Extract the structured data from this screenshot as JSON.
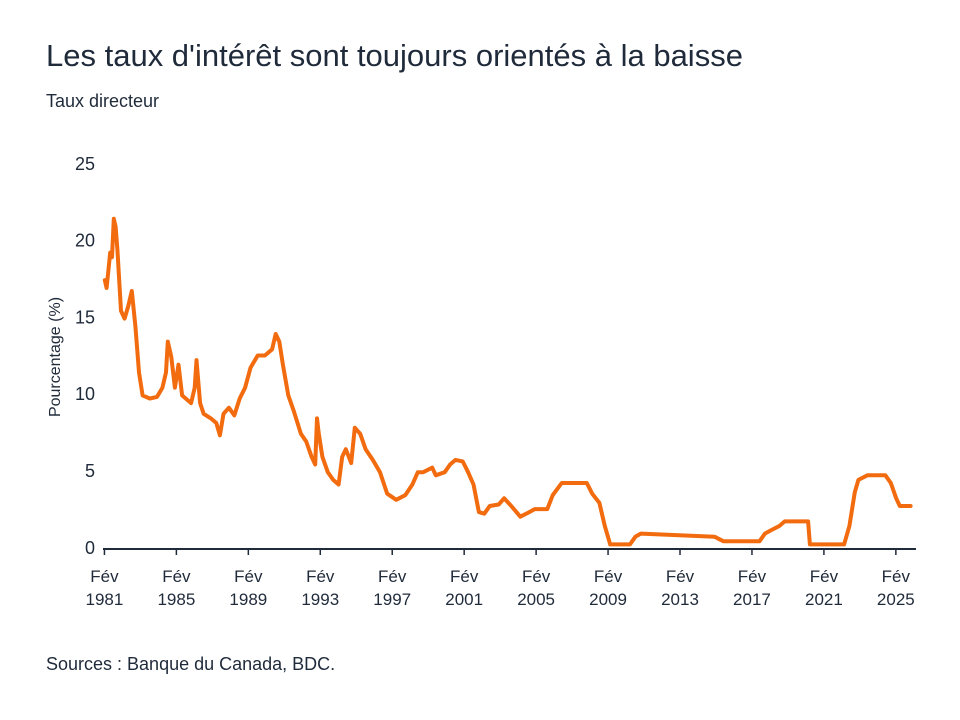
{
  "chart_data": {
    "type": "line",
    "title": "Les taux d'intérêt sont toujours orientés à la baisse",
    "subtitle": "Taux directeur",
    "y_label": "Pourcentage (%)",
    "source": "Sources : Banque du Canada, BDC.",
    "xlim": [
      1981,
      2026.2
    ],
    "xticks": [
      {
        "value": 1981.08,
        "label": "Fév 1981"
      },
      {
        "value": 1985.08,
        "label": "Fév 1985"
      },
      {
        "value": 1989.08,
        "label": "Fév 1989"
      },
      {
        "value": 1993.08,
        "label": "Fév 1993"
      },
      {
        "value": 1997.08,
        "label": "Fév 1997"
      },
      {
        "value": 2001.08,
        "label": "Fév 2001"
      },
      {
        "value": 2005.08,
        "label": "Fév 2005"
      },
      {
        "value": 2009.08,
        "label": "Fév 2009"
      },
      {
        "value": 2013.08,
        "label": "Fév 2013"
      },
      {
        "value": 2017.08,
        "label": "Fév 2017"
      },
      {
        "value": 2021.08,
        "label": "Fév 2021"
      },
      {
        "value": 2025.08,
        "label": "Fév 2025"
      }
    ],
    "ylim": [
      0,
      25
    ],
    "yticks": [
      0,
      5,
      10,
      15,
      20,
      25
    ],
    "grid": false,
    "x": [
      1981.1,
      1981.2,
      1981.4,
      1981.5,
      1981.6,
      1981.7,
      1981.8,
      1981.9,
      1982.0,
      1982.2,
      1982.4,
      1982.6,
      1982.8,
      1983.0,
      1983.2,
      1983.6,
      1984.0,
      1984.3,
      1984.5,
      1984.6,
      1984.8,
      1985.0,
      1985.2,
      1985.4,
      1985.6,
      1985.9,
      1986.1,
      1986.2,
      1986.4,
      1986.6,
      1987.0,
      1987.3,
      1987.5,
      1987.7,
      1988.0,
      1988.3,
      1988.6,
      1988.9,
      1989.2,
      1989.6,
      1990.0,
      1990.4,
      1990.6,
      1990.8,
      1991.0,
      1991.3,
      1991.6,
      1992.0,
      1992.3,
      1992.6,
      1992.8,
      1992.9,
      1993.0,
      1993.2,
      1993.5,
      1993.8,
      1994.1,
      1994.3,
      1994.5,
      1994.8,
      1995.0,
      1995.3,
      1995.6,
      1996.0,
      1996.4,
      1996.8,
      1997.3,
      1997.8,
      1998.2,
      1998.5,
      1998.8,
      1999.3,
      1999.5,
      2000.0,
      2000.3,
      2000.6,
      2001.0,
      2001.3,
      2001.6,
      2001.9,
      2002.2,
      2002.5,
      2003.0,
      2003.3,
      2003.7,
      2004.2,
      2004.7,
      2005.0,
      2005.7,
      2006.0,
      2006.5,
      2007.5,
      2007.9,
      2008.2,
      2008.6,
      2008.9,
      2009.2,
      2010.3,
      2010.6,
      2010.9,
      2015.0,
      2015.5,
      2017.5,
      2017.8,
      2018.1,
      2018.6,
      2018.9,
      2020.2,
      2020.3,
      2022.2,
      2022.5,
      2022.8,
      2023.0,
      2023.5,
      2024.5,
      2024.8,
      2025.1,
      2025.3,
      2025.9
    ],
    "series": [
      {
        "name": "Taux directeur",
        "color": "#f26b0f",
        "values": [
          17.5,
          17.0,
          19.3,
          19.0,
          21.5,
          21.0,
          19.5,
          17.5,
          15.5,
          15.0,
          15.8,
          16.8,
          14.5,
          11.5,
          10.0,
          9.8,
          9.9,
          10.5,
          11.5,
          13.5,
          12.5,
          10.5,
          12.0,
          10.0,
          9.8,
          9.5,
          10.5,
          12.3,
          9.5,
          8.8,
          8.5,
          8.2,
          7.4,
          8.8,
          9.2,
          8.7,
          9.8,
          10.5,
          11.8,
          12.6,
          12.6,
          13.0,
          14.0,
          13.5,
          12.0,
          10.0,
          9.0,
          7.5,
          7.0,
          6.0,
          5.5,
          8.5,
          7.5,
          6.0,
          5.0,
          4.5,
          4.2,
          6.0,
          6.5,
          5.6,
          7.9,
          7.5,
          6.5,
          5.8,
          5.0,
          3.6,
          3.2,
          3.5,
          4.2,
          5.0,
          5.0,
          5.3,
          4.8,
          5.0,
          5.5,
          5.8,
          5.7,
          5.0,
          4.2,
          2.4,
          2.3,
          2.8,
          2.9,
          3.3,
          2.8,
          2.1,
          2.4,
          2.6,
          2.6,
          3.5,
          4.3,
          4.3,
          4.3,
          3.6,
          3.0,
          1.5,
          0.3,
          0.3,
          0.8,
          1.0,
          0.8,
          0.5,
          0.5,
          1.0,
          1.2,
          1.5,
          1.8,
          1.8,
          0.3,
          0.3,
          1.5,
          3.7,
          4.5,
          4.8,
          4.8,
          4.3,
          3.3,
          2.8,
          2.8
        ]
      }
    ]
  }
}
